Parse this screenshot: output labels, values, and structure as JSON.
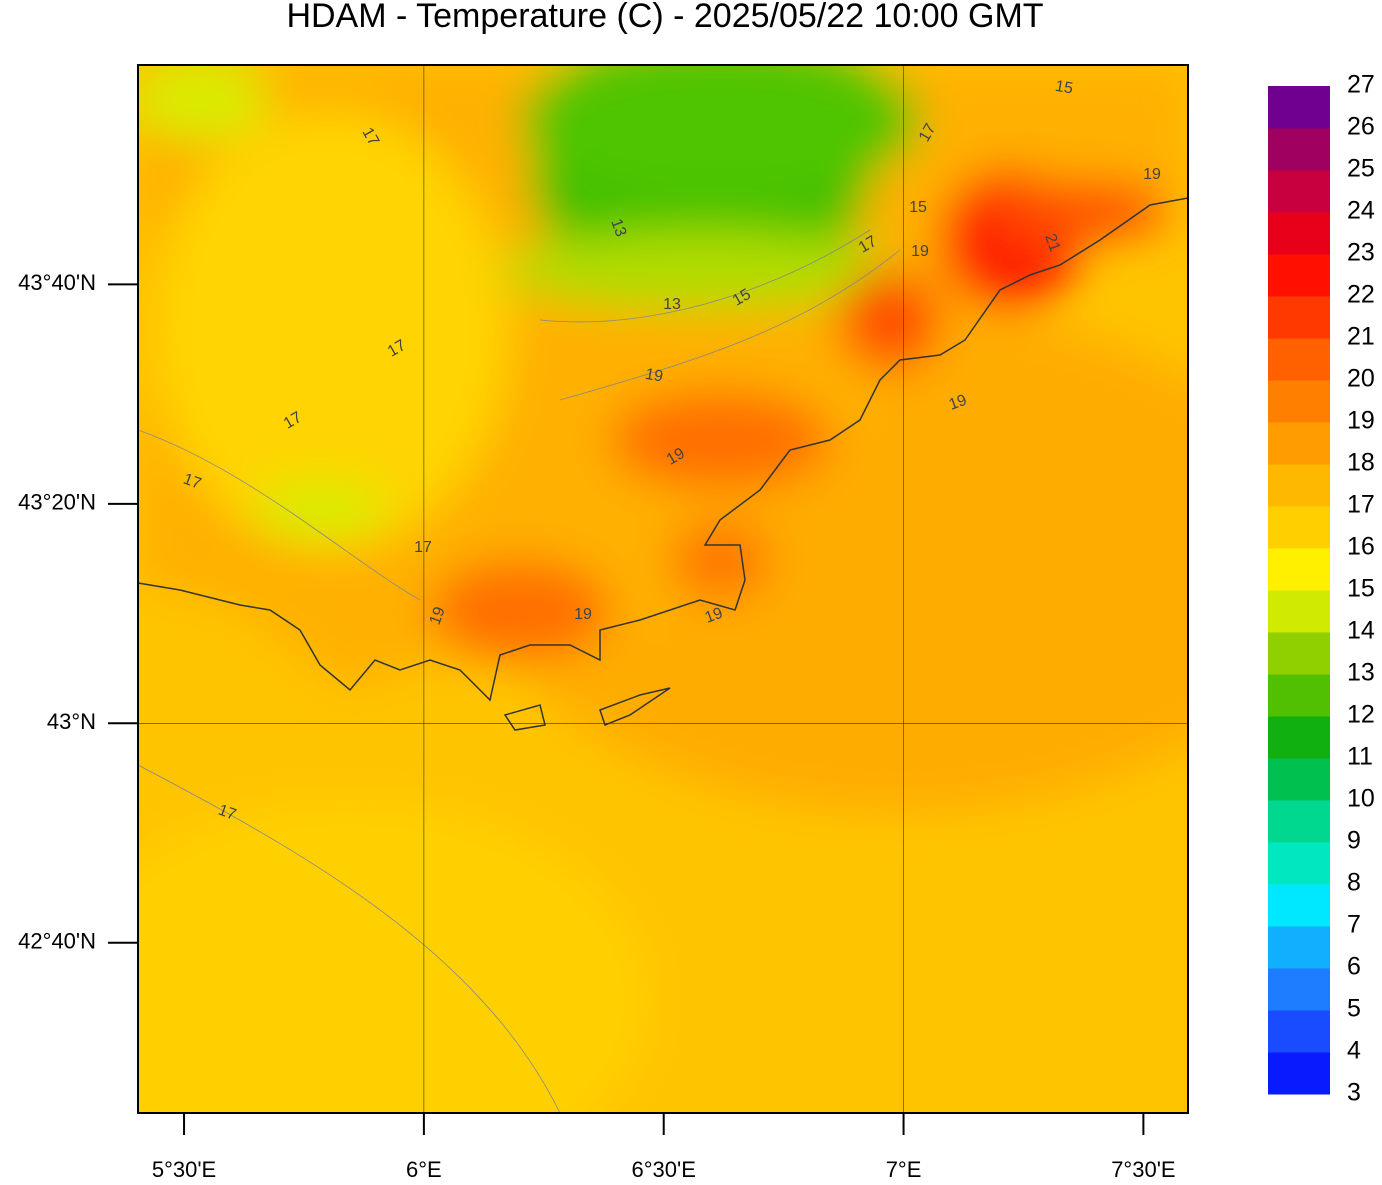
{
  "chart_data": {
    "type": "contour-map",
    "title": "HDAM - Temperature (C)  -  2025/05/22  10:00 GMT",
    "xlim": [
      5.404,
      7.593
    ],
    "ylim": [
      42.408,
      44.0
    ],
    "xticks": [
      {
        "value": 5.5,
        "label": "5°30'E"
      },
      {
        "value": 6,
        "label": "6°E"
      },
      {
        "value": 6.5,
        "label": "6°30'E"
      },
      {
        "value": 7,
        "label": "7°E"
      },
      {
        "value": 7.5,
        "label": "7°30'E"
      }
    ],
    "yticks": [
      {
        "value": 42.6667,
        "label": "42°40'N"
      },
      {
        "value": 43,
        "label": "43°N"
      },
      {
        "value": 43.3333,
        "label": "43°20'N"
      },
      {
        "value": 43.6667,
        "label": "43°40'N"
      }
    ],
    "grid": true,
    "colorbar": {
      "levels": [
        3,
        4,
        5,
        6,
        7,
        8,
        9,
        10,
        11,
        12,
        13,
        14,
        15,
        16,
        17,
        18,
        19,
        20,
        21,
        22,
        23,
        24,
        25,
        26,
        27
      ],
      "colors": [
        "#0a1aff",
        "#1a4cff",
        "#1e7cff",
        "#10b0ff",
        "#00e8ff",
        "#00e8c0",
        "#00d890",
        "#00c050",
        "#10b010",
        "#50c000",
        "#90d000",
        "#d0ea00",
        "#fff000",
        "#ffd000",
        "#ffb800",
        "#ff9c00",
        "#ff8000",
        "#ff6000",
        "#ff3a00",
        "#ff1000",
        "#e8001a",
        "#c80040",
        "#a00060",
        "#700090"
      ]
    },
    "contour_labels": [
      15,
      17,
      19,
      17,
      13,
      15,
      17,
      13,
      15,
      19,
      21,
      17,
      19,
      17,
      17,
      19,
      19,
      17,
      19,
      19,
      19,
      17
    ]
  }
}
